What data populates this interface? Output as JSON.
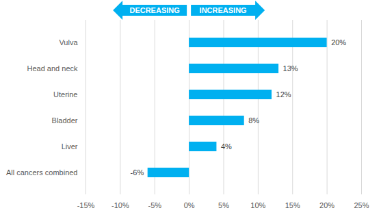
{
  "chart_data": {
    "type": "bar",
    "orientation": "horizontal",
    "annotations": [
      "DECREASING",
      "INCREASING"
    ],
    "categories": [
      "Vulva",
      "Head and neck",
      "Uterine",
      "Bladder",
      "Liver",
      "All cancers combined"
    ],
    "values": [
      20,
      13,
      12,
      8,
      4,
      -6
    ],
    "value_labels": [
      "20%",
      "13%",
      "12%",
      "8%",
      "4%",
      "-6%"
    ],
    "data_labels": true,
    "color": "#00b0f0",
    "xlim": [
      -15,
      25
    ],
    "xticks": [
      {
        "value": -15,
        "label": "-15%"
      },
      {
        "value": -10,
        "label": "-10%"
      },
      {
        "value": -5,
        "label": "-5%"
      },
      {
        "value": 0,
        "label": "0%"
      },
      {
        "value": 5,
        "label": "5%"
      },
      {
        "value": 10,
        "label": "10%"
      },
      {
        "value": 15,
        "label": "15%"
      },
      {
        "value": 20,
        "label": "20%"
      },
      {
        "value": 25,
        "label": "25%"
      }
    ],
    "grid": true
  }
}
